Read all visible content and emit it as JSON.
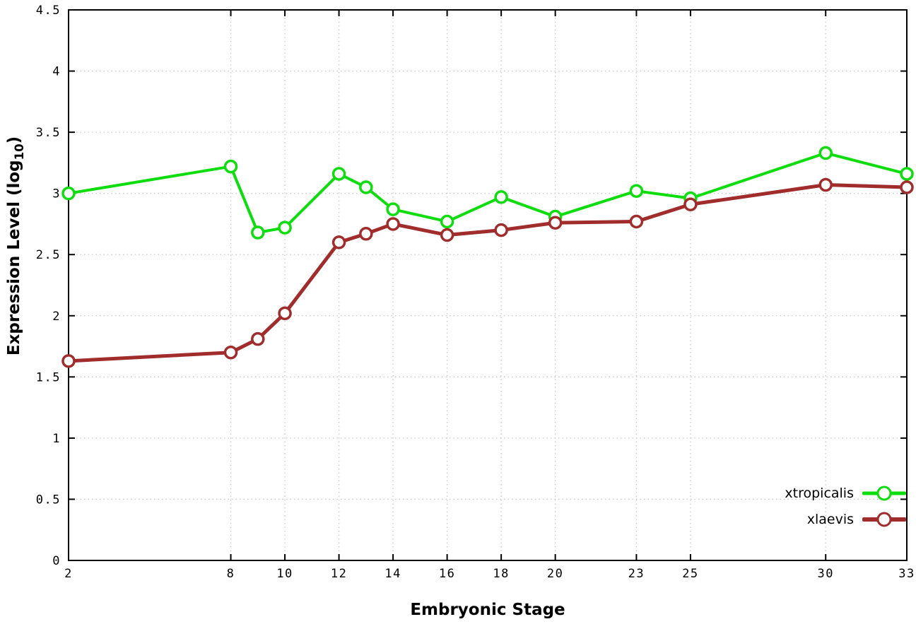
{
  "chart_data": {
    "type": "line",
    "title": "",
    "xlabel": "Embryonic Stage",
    "ylabel_parts": {
      "prefix": "Expression Level (log",
      "sub": "10",
      "suffix": ")"
    },
    "x": [
      2,
      8,
      9,
      10,
      12,
      13,
      14,
      16,
      18,
      20,
      23,
      25,
      30,
      33
    ],
    "series": [
      {
        "name": "xtropicalis",
        "color": "#0ddd0d",
        "line_width": 4,
        "values": [
          3.0,
          3.22,
          2.68,
          2.72,
          3.16,
          3.05,
          2.87,
          2.77,
          2.97,
          2.81,
          3.02,
          2.96,
          3.33,
          3.16
        ]
      },
      {
        "name": "xlaevis",
        "color": "#a02c2c",
        "line_width": 5,
        "values": [
          1.63,
          1.7,
          1.81,
          2.02,
          2.6,
          2.67,
          2.75,
          2.66,
          2.7,
          2.76,
          2.77,
          2.91,
          3.07,
          3.05
        ]
      }
    ],
    "xlim": [
      2,
      33
    ],
    "ylim": [
      0,
      4.5
    ],
    "xticks": [
      {
        "v": 2,
        "label": "2"
      },
      {
        "v": 8,
        "label": "8"
      },
      {
        "v": 10,
        "label": "10"
      },
      {
        "v": 12,
        "label": "12"
      },
      {
        "v": 14,
        "label": "14"
      },
      {
        "v": 16,
        "label": "16"
      },
      {
        "v": 18,
        "label": "18"
      },
      {
        "v": 20,
        "label": "20"
      },
      {
        "v": 23,
        "label": "23"
      },
      {
        "v": 25,
        "label": "25"
      },
      {
        "v": 30,
        "label": "30"
      },
      {
        "v": 33,
        "label": "33"
      }
    ],
    "yticks": [
      {
        "v": 0,
        "label": "0"
      },
      {
        "v": 0.5,
        "label": "0.5"
      },
      {
        "v": 1,
        "label": "1"
      },
      {
        "v": 1.5,
        "label": "1.5"
      },
      {
        "v": 2,
        "label": "2"
      },
      {
        "v": 2.5,
        "label": "2.5"
      },
      {
        "v": 3,
        "label": "3"
      },
      {
        "v": 3.5,
        "label": "3.5"
      },
      {
        "v": 4,
        "label": "4"
      },
      {
        "v": 4.5,
        "label": "4.5"
      }
    ],
    "grid": true,
    "grid_color": "#c8c8c8",
    "axis_color": "#000000",
    "background": "#ffffff",
    "legend_position": "bottom-right",
    "marker": "open-circle"
  }
}
